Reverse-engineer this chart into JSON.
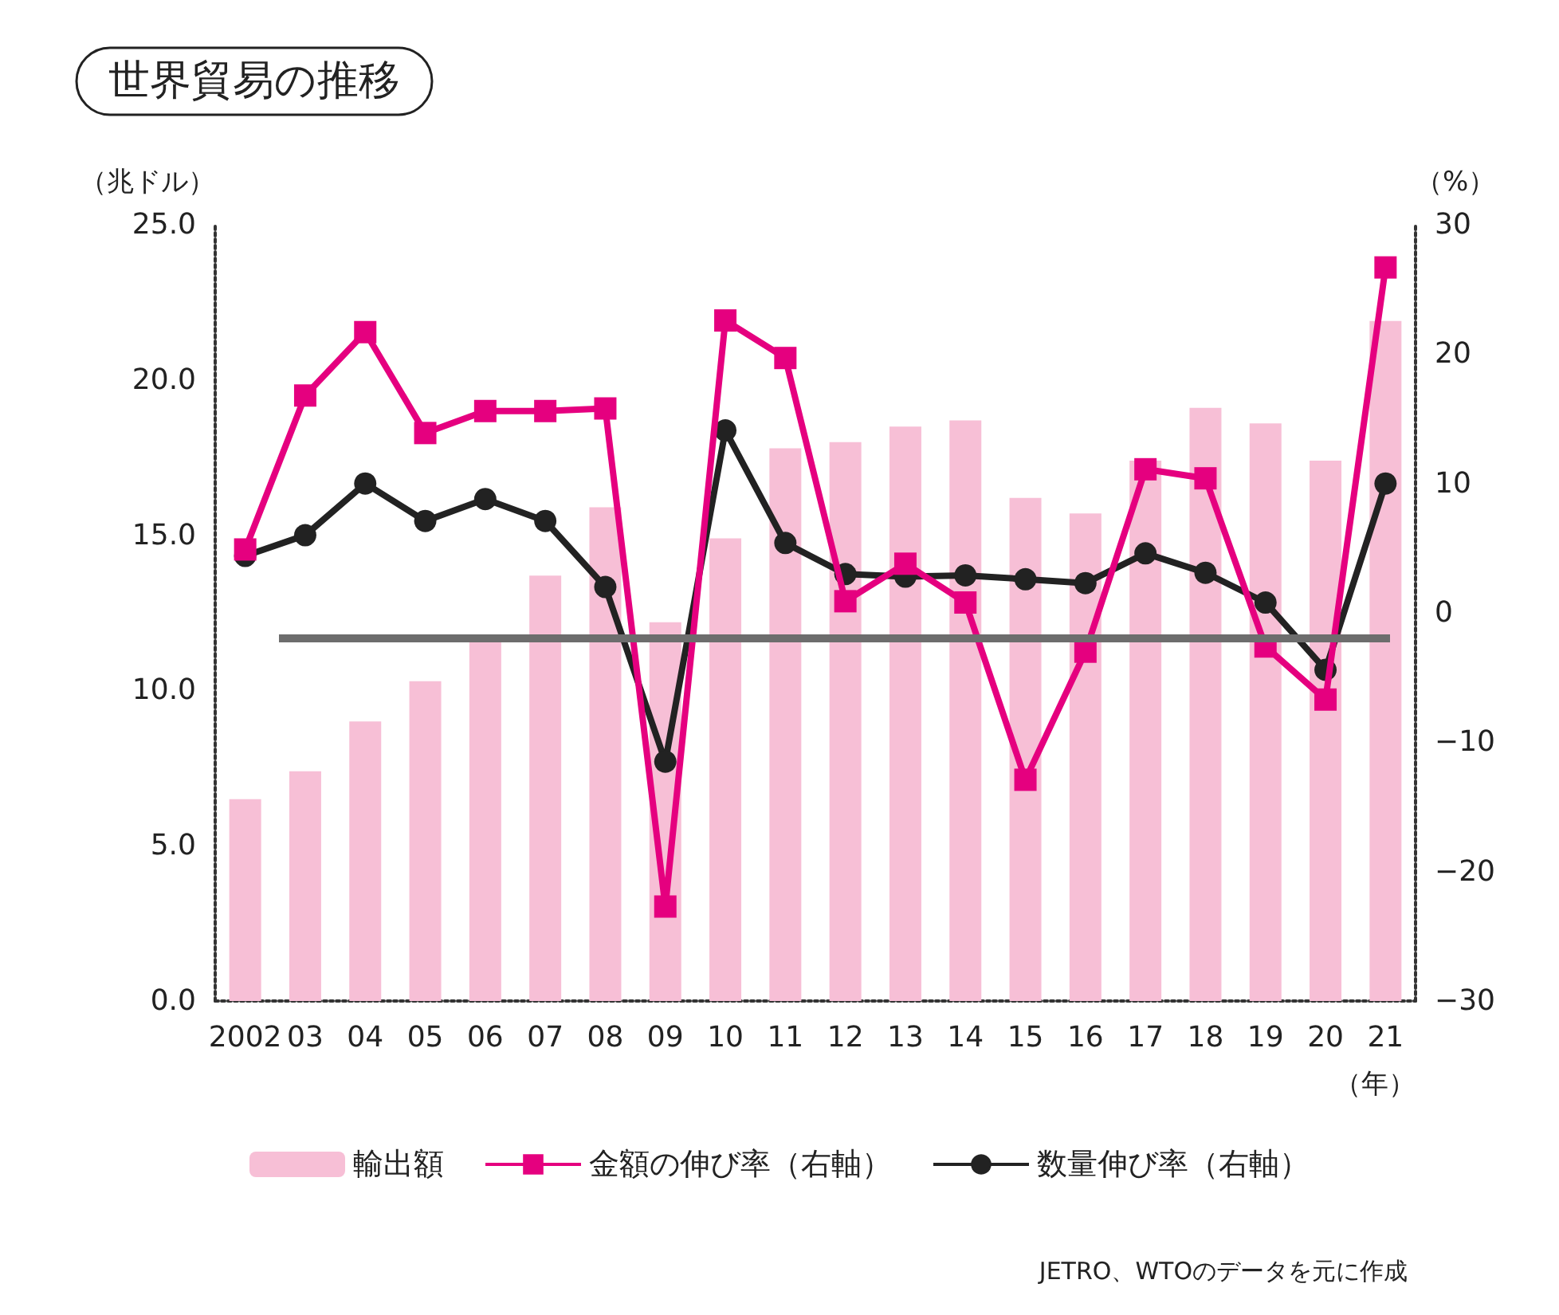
{
  "chart_data": {
    "type": "bar",
    "title": "世界貿易の推移",
    "ylabel": "（兆ドル）",
    "y2label": "（%）",
    "xlabel": "（年）",
    "categories": [
      "2002",
      "03",
      "04",
      "05",
      "06",
      "07",
      "08",
      "09",
      "10",
      "11",
      "12",
      "13",
      "14",
      "15",
      "16",
      "17",
      "18",
      "19",
      "20",
      "21"
    ],
    "series": [
      {
        "name": "輸出額",
        "color": "#f7bfd6",
        "values": [
          6.5,
          7.4,
          9.0,
          10.3,
          11.7,
          13.7,
          15.9,
          12.2,
          14.9,
          17.8,
          18.0,
          18.5,
          18.7,
          16.2,
          15.7,
          17.4,
          19.1,
          18.6,
          17.4,
          21.9
        ]
      },
      {
        "name": "金額の伸び率（右軸）",
        "type": "line",
        "axis": "y2",
        "marker": "square",
        "color": "#e5007f",
        "values": [
          4.9,
          16.8,
          21.7,
          13.9,
          15.6,
          15.6,
          15.8,
          -22.7,
          22.6,
          19.7,
          0.9,
          3.8,
          0.8,
          -12.9,
          -3.0,
          11.1,
          10.4,
          -2.6,
          -6.7,
          26.7
        ]
      },
      {
        "name": "数量伸び率（右軸）",
        "type": "line",
        "axis": "y2",
        "marker": "circle",
        "color": "#222222",
        "values": [
          4.4,
          6.0,
          10.0,
          7.1,
          8.8,
          7.1,
          2.0,
          -11.5,
          14.1,
          5.4,
          3.0,
          2.8,
          2.9,
          2.6,
          2.3,
          4.6,
          3.1,
          0.8,
          -4.4,
          10.0
        ]
      }
    ],
    "ylim": [
      0,
      25
    ],
    "yticks": [
      {
        "value": 0,
        "label": "0.0"
      },
      {
        "value": 5,
        "label": "5.0"
      },
      {
        "value": 10,
        "label": "10.0"
      },
      {
        "value": 15,
        "label": "15.0"
      },
      {
        "value": 20,
        "label": "20.0"
      },
      {
        "value": 25,
        "label": "25.0"
      }
    ],
    "y2lim": [
      -30,
      30
    ],
    "y2ticks": [
      {
        "value": -30,
        "label": "−30"
      },
      {
        "value": -20,
        "label": "−20"
      },
      {
        "value": -10,
        "label": "−10"
      },
      0,
      10,
      20,
      30
    ],
    "ref_lines": [
      {
        "axis": "y2",
        "value": -2,
        "color": "#6d6d6d"
      }
    ],
    "grid": false,
    "legend": "bottom",
    "annotations": [
      "JETRO、WTOのデータを元に作成"
    ]
  }
}
